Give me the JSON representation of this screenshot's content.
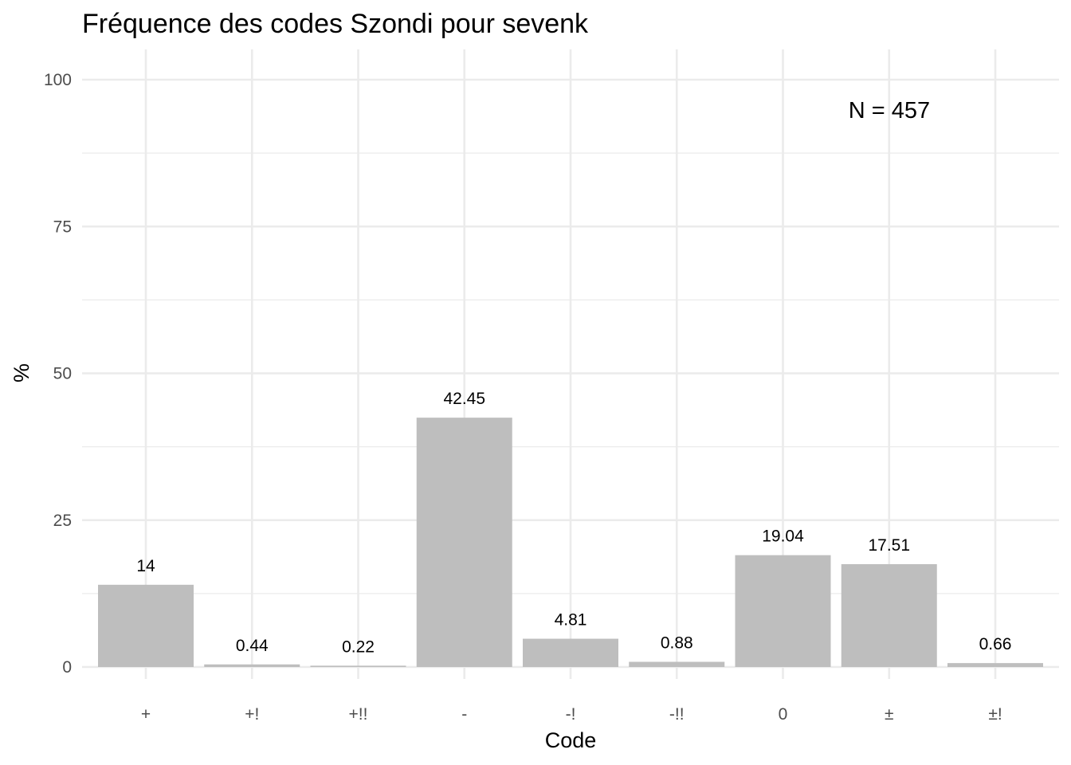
{
  "chart_data": {
    "type": "bar",
    "title": "Fréquence des codes Szondi pour sevenk",
    "xlabel": "Code",
    "ylabel": "%",
    "categories": [
      "+",
      "+!",
      "+!!",
      "-",
      "-!",
      "-!!",
      "0",
      "±",
      "±!"
    ],
    "values": [
      14,
      0.44,
      0.22,
      42.45,
      4.81,
      0.88,
      19.04,
      17.51,
      0.66
    ],
    "data_labels": [
      "14",
      "0.44",
      "0.22",
      "42.45",
      "4.81",
      "0.88",
      "19.04",
      "17.51",
      "0.66"
    ],
    "ylim": [
      0,
      100
    ],
    "y_ticks": [
      0,
      25,
      50,
      75,
      100
    ],
    "y_tick_labels": [
      "0",
      "25",
      "50",
      "75",
      "100"
    ],
    "y_minor_ticks": [
      12.5,
      37.5,
      62.5,
      87.5
    ],
    "grid": true,
    "bar_color": "#bebebe",
    "annotation": "N = 457"
  }
}
